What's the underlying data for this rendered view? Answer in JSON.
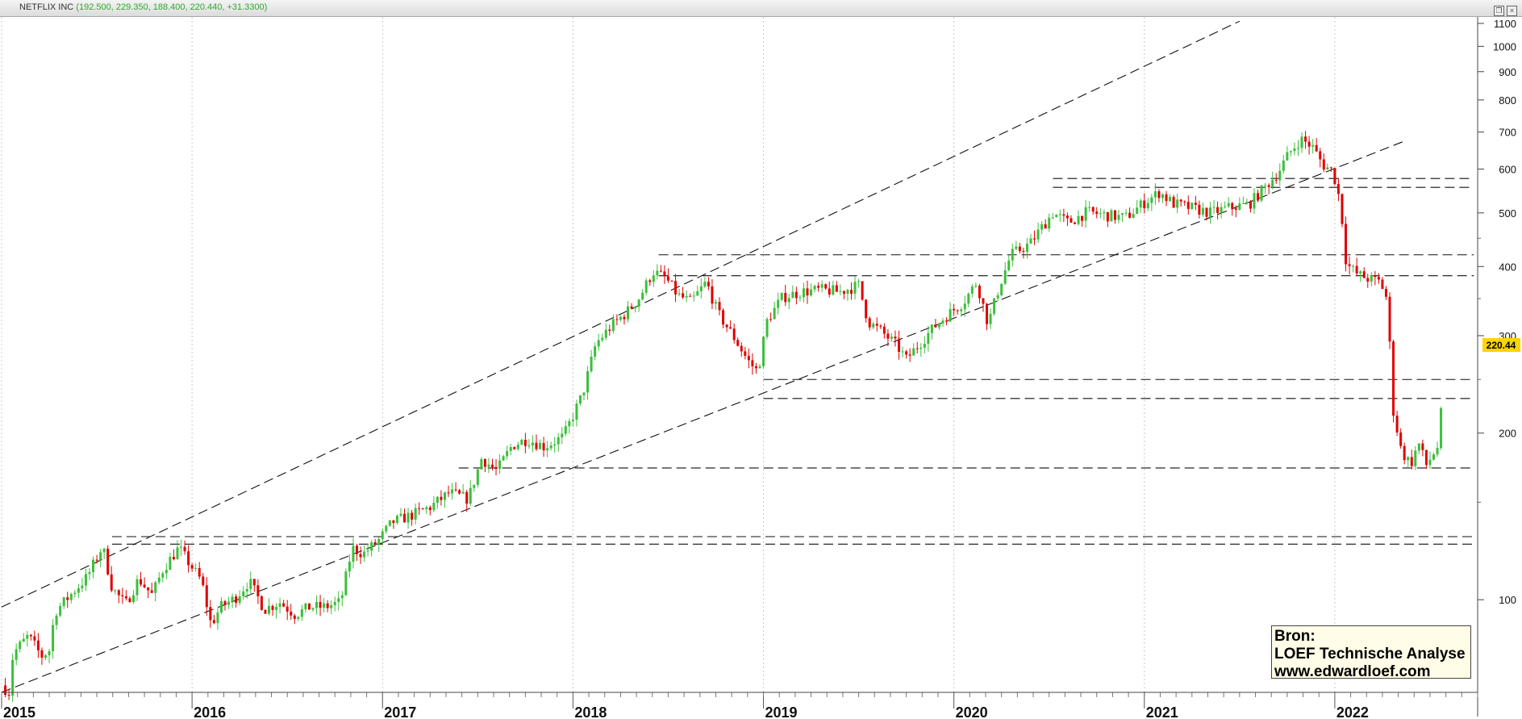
{
  "header": {
    "symbol": "NETFLIX INC",
    "ohlc": "(192.500, 229.350, 188.400, 220.440, +31.3300)"
  },
  "source_box": {
    "line1": "Bron:",
    "line2": "LOEF Technische Analyse",
    "line3": "www.edwardloef.com"
  },
  "last_price_label": "220.44",
  "colors": {
    "up": "#3bbf3b",
    "down": "#e00000",
    "last_price_bg": "#ffd400"
  },
  "chart_data": {
    "type": "candlestick",
    "title": "NETFLIX INC",
    "y_scale": "log",
    "ylim": [
      68,
      1130
    ],
    "y_ticks": [
      100,
      200,
      300,
      400,
      500,
      600,
      700,
      800,
      900,
      1000,
      1100
    ],
    "xlim": [
      2015.0,
      2022.75
    ],
    "x_ticks": [
      "2015",
      "2016",
      "2017",
      "2018",
      "2019",
      "2020",
      "2021",
      "2022"
    ],
    "price_path": [
      [
        2015.0,
        70
      ],
      [
        2015.04,
        68
      ],
      [
        2015.06,
        80
      ],
      [
        2015.14,
        86
      ],
      [
        2015.21,
        79
      ],
      [
        2015.25,
        81
      ],
      [
        2015.28,
        95
      ],
      [
        2015.35,
        101
      ],
      [
        2015.45,
        110
      ],
      [
        2015.53,
        125
      ],
      [
        2015.58,
        105
      ],
      [
        2015.65,
        98
      ],
      [
        2015.72,
        109
      ],
      [
        2015.79,
        102
      ],
      [
        2015.85,
        114
      ],
      [
        2015.93,
        124
      ],
      [
        2016.05,
        108
      ],
      [
        2016.1,
        90
      ],
      [
        2016.15,
        97
      ],
      [
        2016.23,
        101
      ],
      [
        2016.3,
        108
      ],
      [
        2016.38,
        96
      ],
      [
        2016.46,
        99
      ],
      [
        2016.54,
        94
      ],
      [
        2016.62,
        97
      ],
      [
        2016.7,
        97
      ],
      [
        2016.78,
        99
      ],
      [
        2016.84,
        124
      ],
      [
        2016.9,
        121
      ],
      [
        2016.98,
        128
      ],
      [
        2017.05,
        138
      ],
      [
        2017.15,
        142
      ],
      [
        2017.25,
        147
      ],
      [
        2017.35,
        156
      ],
      [
        2017.45,
        152
      ],
      [
        2017.52,
        180
      ],
      [
        2017.6,
        171
      ],
      [
        2017.68,
        190
      ],
      [
        2017.76,
        195
      ],
      [
        2017.85,
        189
      ],
      [
        2017.95,
        197
      ],
      [
        2018.05,
        235
      ],
      [
        2018.12,
        290
      ],
      [
        2018.2,
        312
      ],
      [
        2018.28,
        330
      ],
      [
        2018.35,
        352
      ],
      [
        2018.42,
        392
      ],
      [
        2018.49,
        380
      ],
      [
        2018.55,
        355
      ],
      [
        2018.62,
        345
      ],
      [
        2018.7,
        375
      ],
      [
        2018.76,
        330
      ],
      [
        2018.84,
        300
      ],
      [
        2018.92,
        270
      ],
      [
        2018.97,
        258
      ],
      [
        2019.02,
        320
      ],
      [
        2019.1,
        352
      ],
      [
        2019.2,
        360
      ],
      [
        2019.3,
        363
      ],
      [
        2019.4,
        360
      ],
      [
        2019.5,
        370
      ],
      [
        2019.55,
        318
      ],
      [
        2019.62,
        305
      ],
      [
        2019.7,
        288
      ],
      [
        2019.75,
        272
      ],
      [
        2019.83,
        293
      ],
      [
        2019.9,
        312
      ],
      [
        2019.97,
        328
      ],
      [
        2020.05,
        345
      ],
      [
        2020.12,
        375
      ],
      [
        2020.18,
        315
      ],
      [
        2020.24,
        370
      ],
      [
        2020.3,
        420
      ],
      [
        2020.4,
        440
      ],
      [
        2020.46,
        470
      ],
      [
        2020.52,
        500
      ],
      [
        2020.6,
        480
      ],
      [
        2020.7,
        502
      ],
      [
        2020.8,
        495
      ],
      [
        2020.9,
        490
      ],
      [
        2021.0,
        522
      ],
      [
        2021.08,
        545
      ],
      [
        2021.15,
        520
      ],
      [
        2021.25,
        510
      ],
      [
        2021.35,
        500
      ],
      [
        2021.45,
        512
      ],
      [
        2021.55,
        518
      ],
      [
        2021.62,
        550
      ],
      [
        2021.7,
        590
      ],
      [
        2021.76,
        640
      ],
      [
        2021.82,
        680
      ],
      [
        2021.88,
        660
      ],
      [
        2021.94,
        610
      ],
      [
        2021.99,
        595
      ],
      [
        2022.03,
        520
      ],
      [
        2022.06,
        405
      ],
      [
        2022.12,
        387
      ],
      [
        2022.18,
        380
      ],
      [
        2022.24,
        375
      ],
      [
        2022.28,
        345
      ],
      [
        2022.3,
        226
      ],
      [
        2022.35,
        185
      ],
      [
        2022.4,
        176
      ],
      [
        2022.44,
        192
      ],
      [
        2022.48,
        175
      ],
      [
        2022.54,
        189
      ],
      [
        2022.56,
        220.44
      ]
    ],
    "channel_lines": [
      {
        "from": [
          2015.0,
          97
        ],
        "to": [
          2021.5,
          1110
        ]
      },
      {
        "from": [
          2015.0,
          68
        ],
        "to": [
          2022.37,
          675
        ]
      }
    ],
    "horizontal_levels": [
      {
        "start": 2015.58,
        "end": 2022.73,
        "value": 130
      },
      {
        "start": 2015.58,
        "end": 2022.73,
        "value": 126
      },
      {
        "start": 2018.45,
        "end": 2022.73,
        "value": 420
      },
      {
        "start": 2018.45,
        "end": 2022.73,
        "value": 385
      },
      {
        "start": 2019.0,
        "end": 2022.73,
        "value": 250
      },
      {
        "start": 2019.0,
        "end": 2022.73,
        "value": 231
      },
      {
        "start": 2017.4,
        "end": 2022.73,
        "value": 173
      },
      {
        "start": 2020.52,
        "end": 2022.73,
        "value": 577
      },
      {
        "start": 2020.52,
        "end": 2022.73,
        "value": 556
      }
    ],
    "last_price": 220.44
  }
}
